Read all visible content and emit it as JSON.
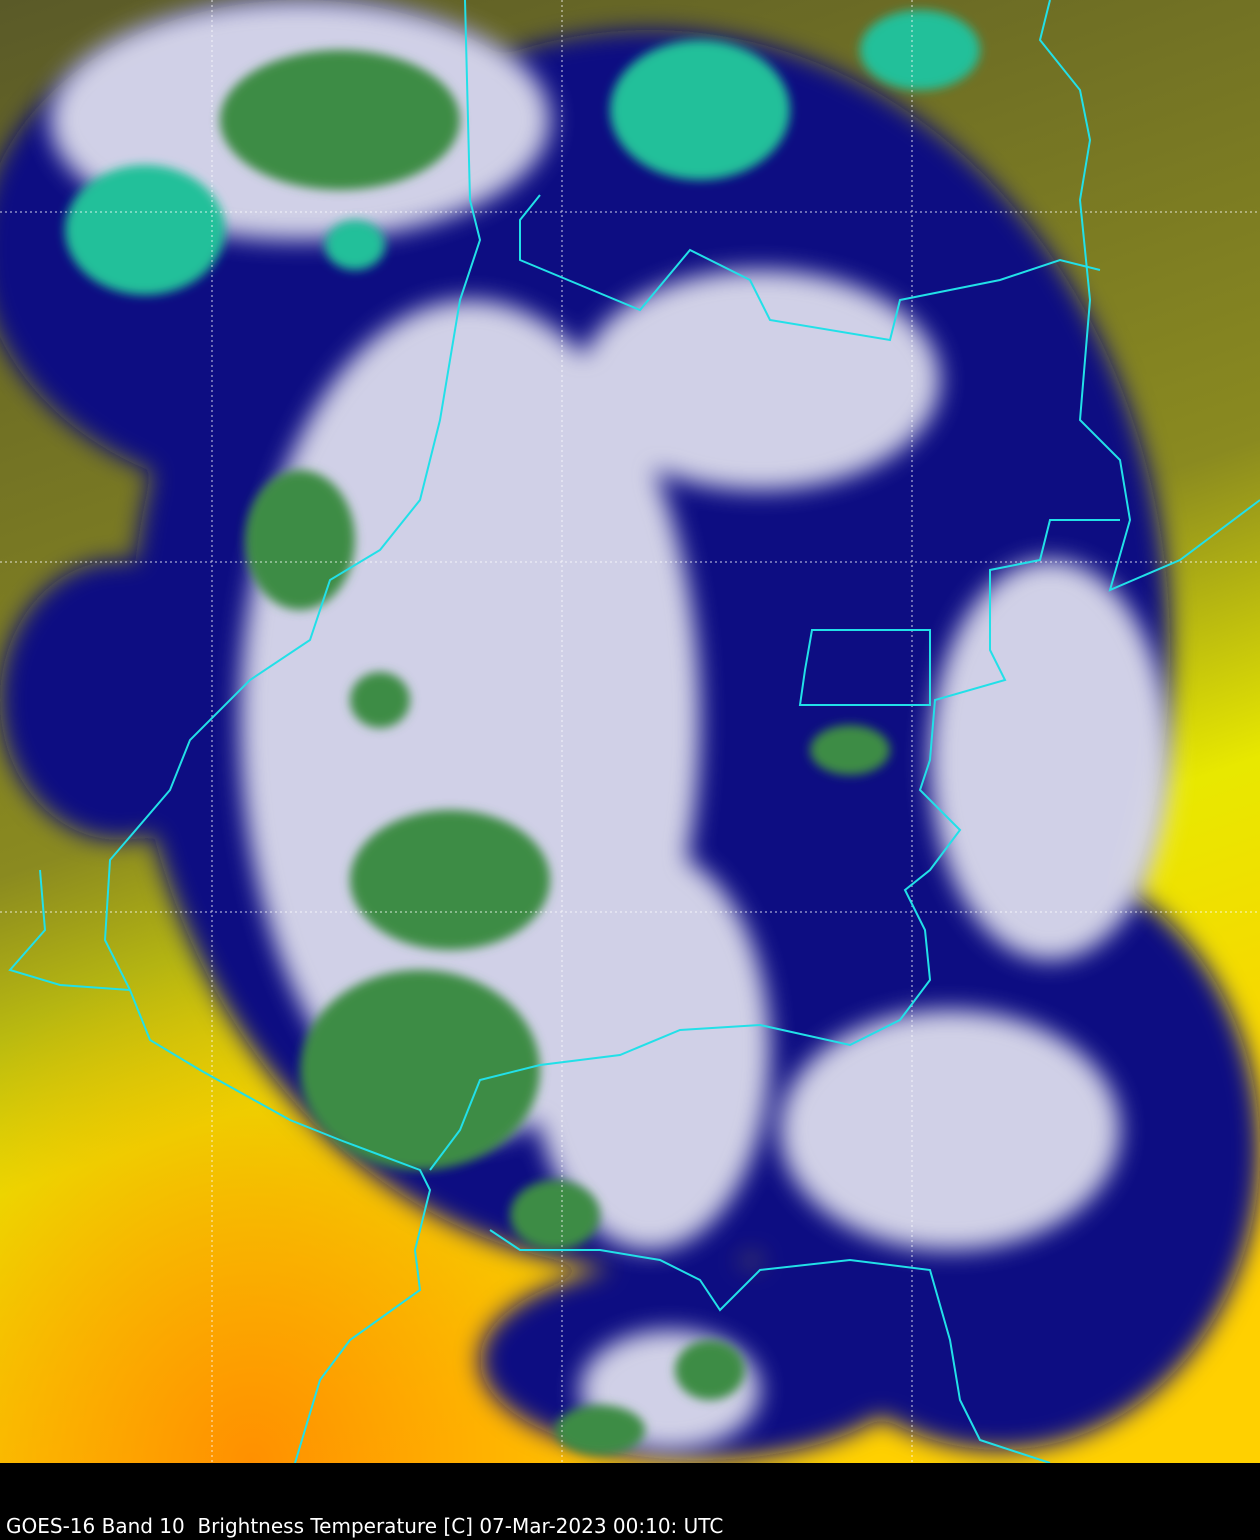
{
  "caption": "GOES-16 Band 10  Brightness Temperature [C] 07-Mar-2023 00:10: UTC",
  "colors": {
    "warm_clear": "#f0f000",
    "hot": "#ff9a00",
    "low_cloud": "#6e6a1e",
    "mid_cloud": "#0a0a80",
    "high_cloud": "#e8e8f4",
    "cold_top": "#3a8a3a",
    "coldest_top": "#1ec8a0",
    "borders": "#22e0e8",
    "background": "#000000"
  }
}
